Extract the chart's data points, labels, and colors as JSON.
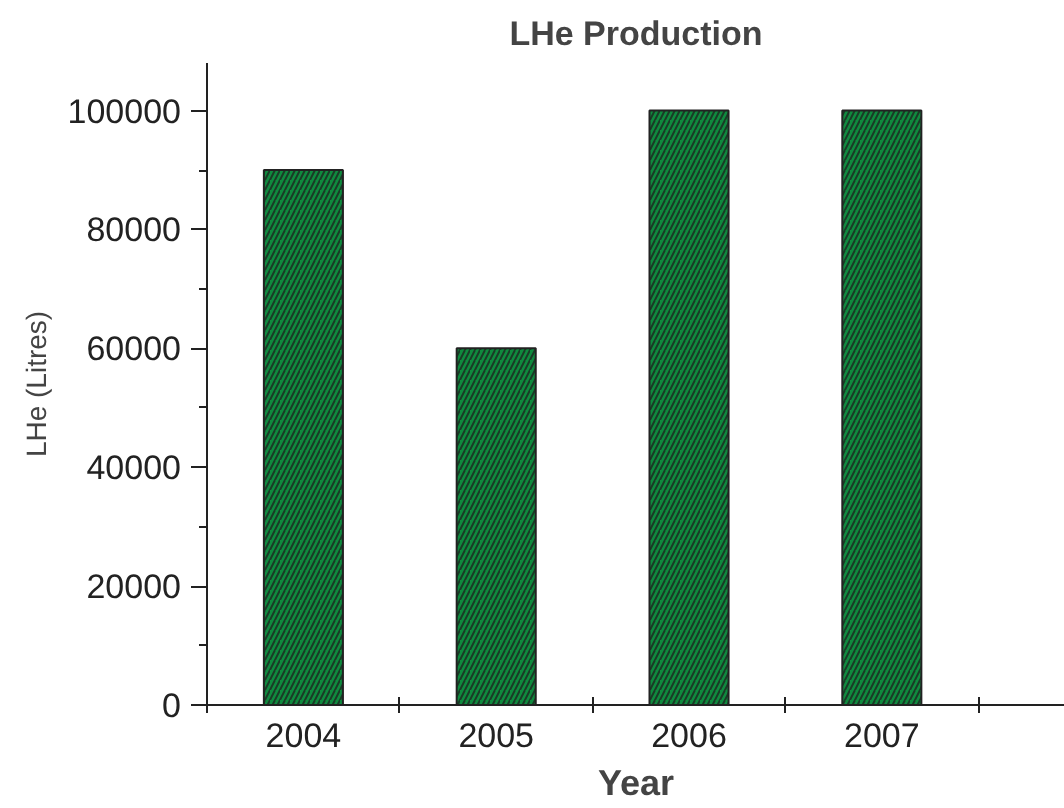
{
  "chart_data": {
    "type": "bar",
    "title": "LHe Production",
    "xlabel": "Year",
    "ylabel": "LHe (Litres)",
    "categories": [
      "2004",
      "2005",
      "2006",
      "2007"
    ],
    "values": [
      90000,
      60000,
      100000,
      100000
    ],
    "color": "#0f8a3e",
    "ylim": [
      0,
      108000
    ],
    "yticks": [
      0,
      20000,
      40000,
      60000,
      80000,
      100000
    ],
    "grid": false
  }
}
